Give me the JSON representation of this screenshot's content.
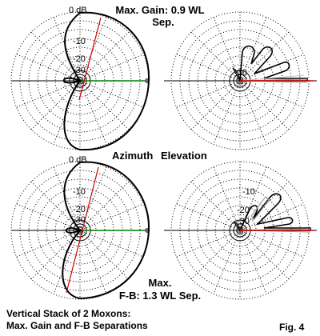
{
  "figure": {
    "top_title_line1": "Max. Gain: 0.9 WL",
    "top_title_line2": "Sep.",
    "middle_label_azimuth": "Azimuth",
    "middle_label_elevation": "Elevation",
    "bottom_title_line1": "Max.",
    "bottom_title_line2": "F-B: 1.3 WL Sep.",
    "caption_line1": "Vertical Stack of 2 Moxons:",
    "caption_line2": "Max. Gain and F-B Separations",
    "fig_number": "Fig. 4"
  },
  "rings": {
    "zero_db": "0 dB",
    "labels": [
      "-10",
      "-20",
      "-30"
    ]
  },
  "colors": {
    "pattern": "#000000",
    "azimuth_line": "#d40000",
    "baseline": "#008000",
    "grid": "#000000"
  }
}
